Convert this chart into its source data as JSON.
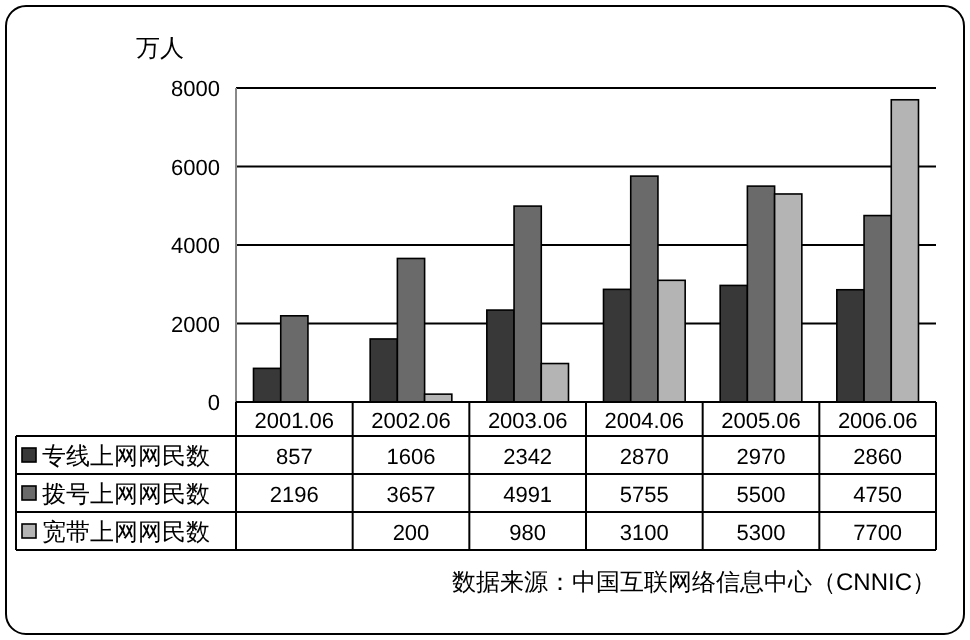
{
  "chart_data": {
    "type": "bar",
    "ylabel": "万人",
    "categories": [
      "2001.06",
      "2002.06",
      "2003.06",
      "2004.06",
      "2005.06",
      "2006.06"
    ],
    "series": [
      {
        "name": "专线上网网民数",
        "color": "#383838",
        "values": [
          857,
          1606,
          2342,
          2870,
          2970,
          2860
        ]
      },
      {
        "name": "拨号上网网民数",
        "color": "#6a6a6a",
        "values": [
          2196,
          3657,
          4991,
          5755,
          5500,
          4750
        ]
      },
      {
        "name": "宽带上网网民数",
        "color": "#b4b4b4",
        "values": [
          null,
          200,
          980,
          3100,
          5300,
          7700
        ]
      }
    ],
    "ylim": [
      0,
      8000
    ],
    "yticks": [
      0,
      2000,
      4000,
      6000,
      8000
    ],
    "grid": "y",
    "legend": "bottom left",
    "data_labels": true,
    "annotations": [
      "数据来源：中国互联网络信息中心（CNNIC）"
    ]
  }
}
